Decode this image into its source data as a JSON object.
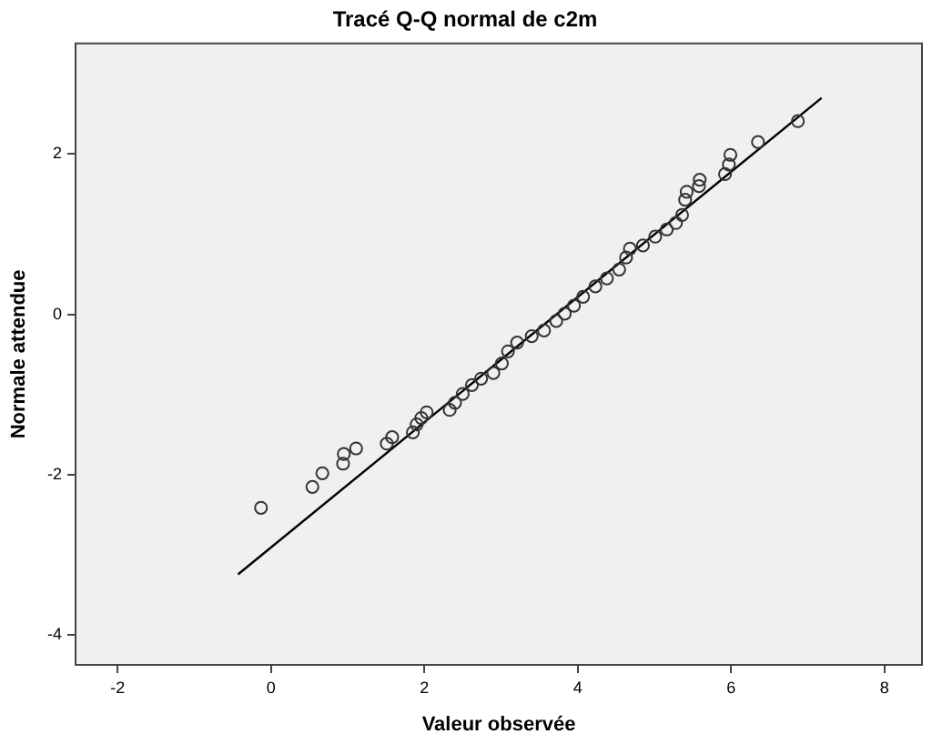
{
  "chart_data": {
    "type": "scatter",
    "title": "Tracé Q-Q normal de c2m",
    "xlabel": "Valeur observée",
    "ylabel": "Normale attendue",
    "xlim": [
      -2.56,
      8.5
    ],
    "ylim": [
      -4.38,
      3.39
    ],
    "xticks": [
      -2,
      0,
      2,
      4,
      6,
      8
    ],
    "yticks": [
      -4,
      -2,
      0,
      2
    ],
    "grid": false,
    "legend": false,
    "marker": "circle",
    "series": [
      {
        "color": "#333333",
        "x": [
          -0.13,
          0.54,
          0.67,
          0.94,
          0.95,
          1.11,
          1.51,
          1.58,
          1.85,
          1.9,
          1.96,
          2.03,
          2.33,
          2.4,
          2.5,
          2.62,
          2.74,
          2.9,
          3.01,
          3.09,
          3.21,
          3.4,
          3.56,
          3.72,
          3.83,
          3.95,
          4.07,
          4.23,
          4.38,
          4.54,
          4.63,
          4.68,
          4.85,
          5.01,
          5.16,
          5.28,
          5.36,
          5.4,
          5.42,
          5.58,
          5.59,
          5.92,
          5.97,
          5.99,
          6.35,
          6.87
        ],
        "values": [
          -2.41,
          -2.15,
          -1.98,
          -1.86,
          -1.74,
          -1.67,
          -1.61,
          -1.53,
          -1.47,
          -1.37,
          -1.29,
          -1.22,
          -1.19,
          -1.1,
          -0.99,
          -0.88,
          -0.8,
          -0.73,
          -0.61,
          -0.46,
          -0.35,
          -0.27,
          -0.2,
          -0.08,
          0.01,
          0.11,
          0.22,
          0.35,
          0.45,
          0.56,
          0.71,
          0.82,
          0.86,
          0.97,
          1.06,
          1.14,
          1.24,
          1.43,
          1.53,
          1.6,
          1.68,
          1.75,
          1.87,
          1.99,
          2.15,
          2.41
        ]
      },
      {
        "type": "line",
        "marker": "none",
        "color": "#000000",
        "x": [
          -0.43,
          7.18
        ],
        "values": [
          -3.24,
          2.7
        ]
      }
    ]
  }
}
